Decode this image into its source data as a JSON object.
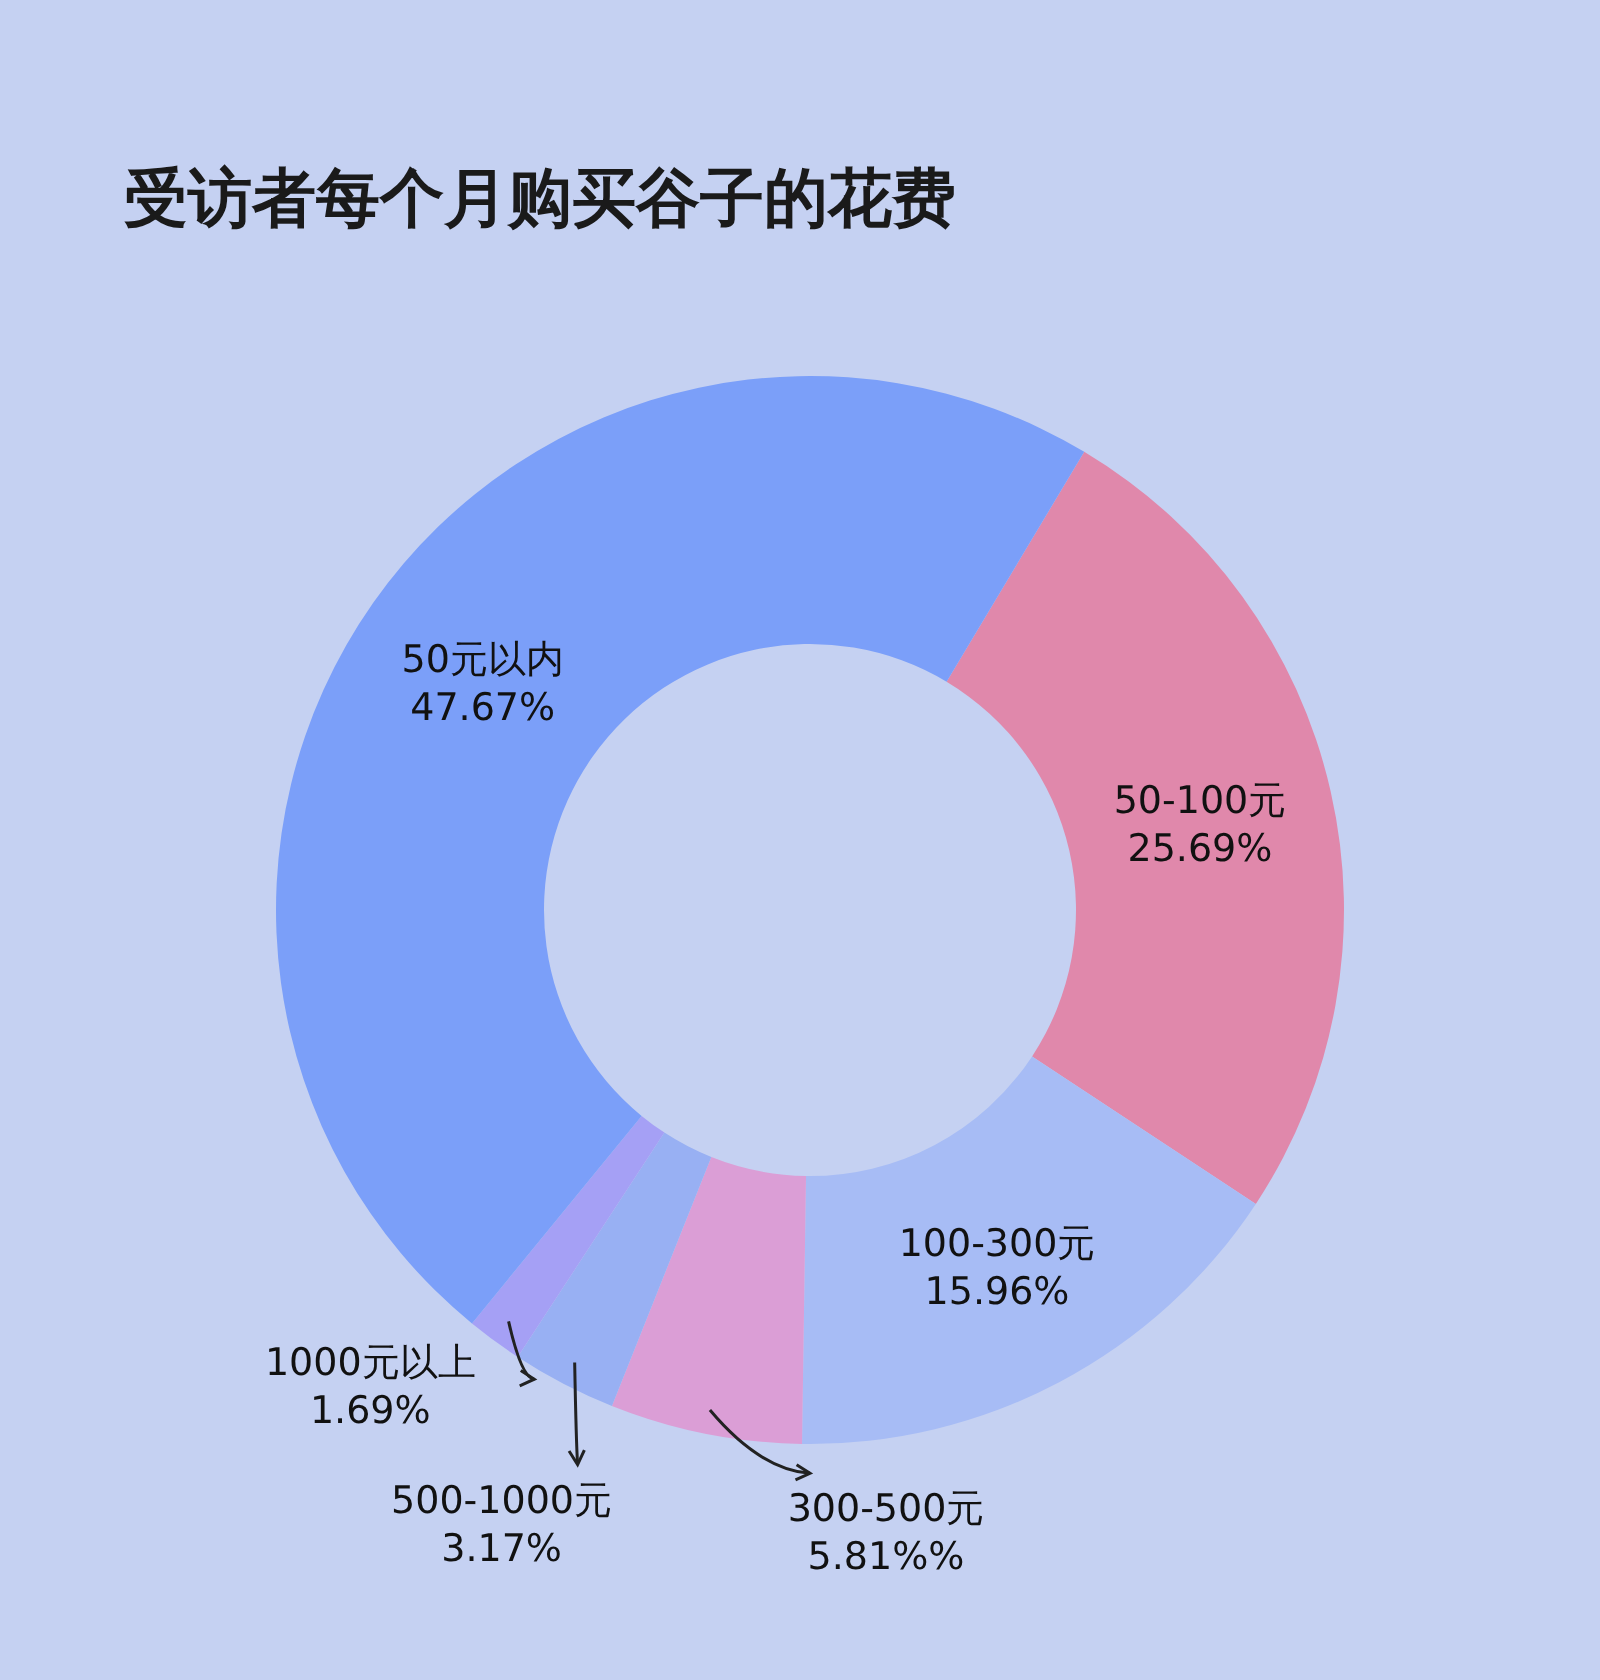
{
  "chart_data": {
    "type": "donut",
    "title": "受访者每个月购买谷子的花费",
    "categories": [
      "50-100元",
      "100-300元",
      "300-500元",
      "500-1000元",
      "1000元以上",
      "50元以内"
    ],
    "values": [
      25.69,
      15.96,
      5.81,
      3.17,
      1.69,
      47.67
    ],
    "value_labels": [
      "25.69%",
      "15.96%",
      "5.81%%",
      "3.17%",
      "1.69%",
      "47.67%"
    ],
    "colors": [
      "#e088ab",
      "#a7bcf5",
      "#db9ed6",
      "#98b0f3",
      "#a5a0f5",
      "#7b9ff9"
    ]
  }
}
